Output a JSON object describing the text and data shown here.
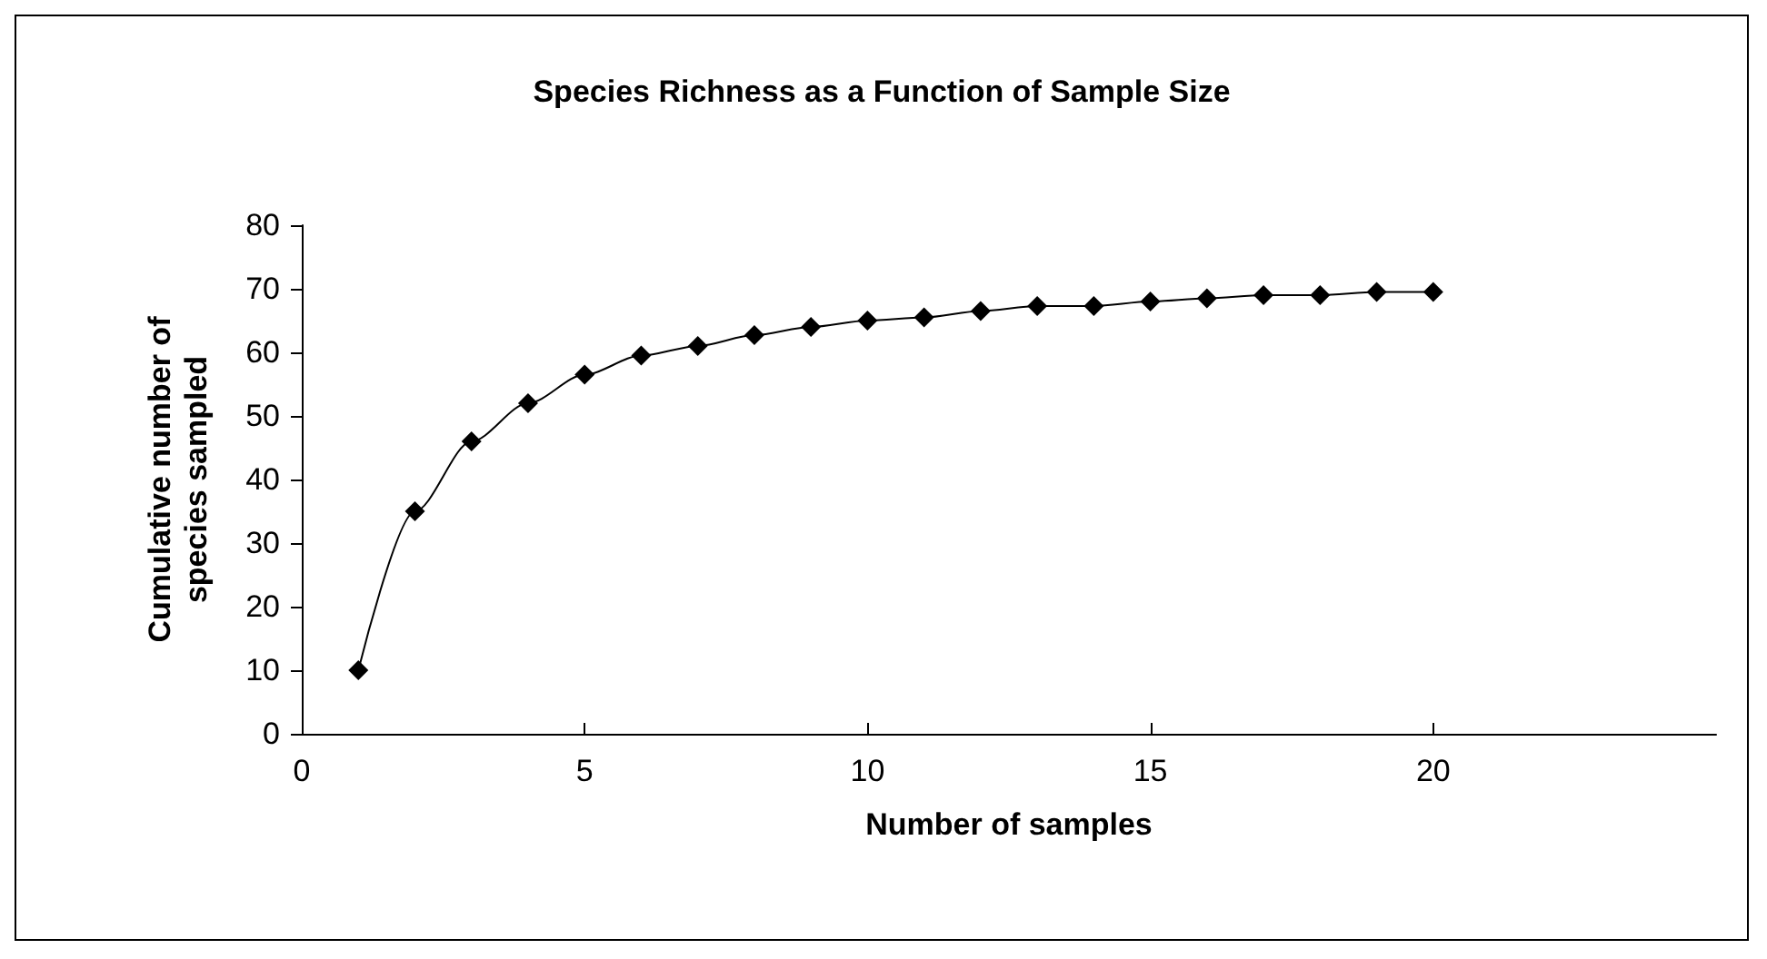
{
  "chart_data": {
    "type": "line",
    "title": "Species Richness as a Function of Sample Size",
    "xlabel": "Number of samples",
    "ylabel": "Cumulative number of species sampled",
    "x": [
      1,
      2,
      3,
      4,
      5,
      6,
      7,
      8,
      9,
      10,
      11,
      12,
      13,
      14,
      15,
      16,
      17,
      18,
      19,
      20
    ],
    "series": [
      {
        "color": "#000000",
        "values": [
          10,
          35,
          46,
          52,
          56.5,
          59.5,
          61,
          62.7,
          64,
          65,
          65.5,
          66.5,
          67.3,
          67.3,
          68,
          68.5,
          69,
          69,
          69.5,
          69.5
        ]
      }
    ],
    "xlim": [
      0,
      25
    ],
    "xticks": [
      0,
      5,
      10,
      15,
      20
    ],
    "ylim": [
      0,
      80
    ],
    "yticks": [
      0,
      10,
      20,
      30,
      40,
      50,
      60,
      70,
      80
    ],
    "grid": false,
    "marker": "diamond",
    "line_style": "solid"
  }
}
